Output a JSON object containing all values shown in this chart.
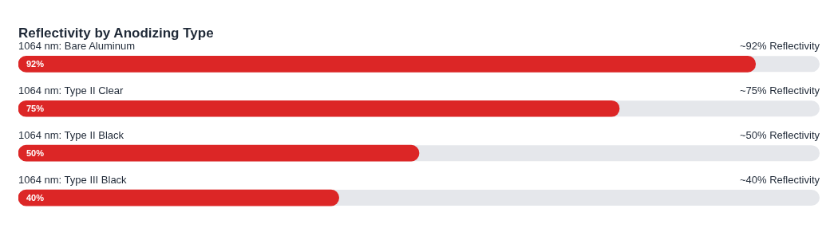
{
  "chart_data": {
    "type": "bar",
    "orientation": "horizontal",
    "title": "Reflectivity by Anodizing Type",
    "categories": [
      "1064 nm: Bare Aluminum",
      "1064 nm: Type II Clear",
      "1064 nm: Type II Black",
      "1064 nm: Type III Black"
    ],
    "values": [
      92,
      75,
      50,
      40
    ],
    "value_labels": [
      "92%",
      "75%",
      "50%",
      "40%"
    ],
    "color": "#dc2626",
    "xlim": [
      0,
      100
    ],
    "annotations": [
      "~92% Reflectivity",
      "~75% Reflectivity",
      "~50% Reflectivity",
      "~40% Reflectivity"
    ]
  }
}
